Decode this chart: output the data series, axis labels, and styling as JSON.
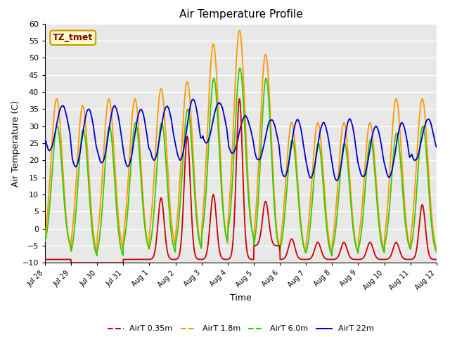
{
  "title": "Air Temperature Profile",
  "xlabel": "Time",
  "ylabel": "Air Temperature (C)",
  "ylim": [
    -10,
    60
  ],
  "yticks": [
    -10,
    -5,
    0,
    5,
    10,
    15,
    20,
    25,
    30,
    35,
    40,
    45,
    50,
    55,
    60
  ],
  "colors": {
    "AirT 0.35m": "#cc0000",
    "AirT 1.8m": "#ff9900",
    "AirT 6.0m": "#33cc00",
    "AirT 22m": "#0000cc"
  },
  "legend_labels": [
    "AirT 0.35m",
    "AirT 1.8m",
    "AirT 6.0m",
    "AirT 22m"
  ],
  "annotation_text": "TZ_tmet",
  "annotation_color": "#880000",
  "annotation_bg": "#ffffcc",
  "annotation_edge": "#cc9900",
  "fig_bg": "#ffffff",
  "plot_bg": "#e8e8e8",
  "grid_color": "#ffffff",
  "xtick_labels": [
    "Jul 28",
    "Jul 29",
    "Jul 30",
    "Jul 31",
    "Aug 1",
    "Aug 2",
    "Aug 3",
    "Aug 4",
    "Aug 5",
    "Aug 6",
    "Aug 7",
    "Aug 8",
    "Aug 9",
    "Aug 10",
    "Aug 11",
    "Aug 12"
  ],
  "xtick_positions": [
    0,
    1,
    2,
    3,
    4,
    5,
    6,
    7,
    8,
    9,
    10,
    11,
    12,
    13,
    14,
    15
  ]
}
